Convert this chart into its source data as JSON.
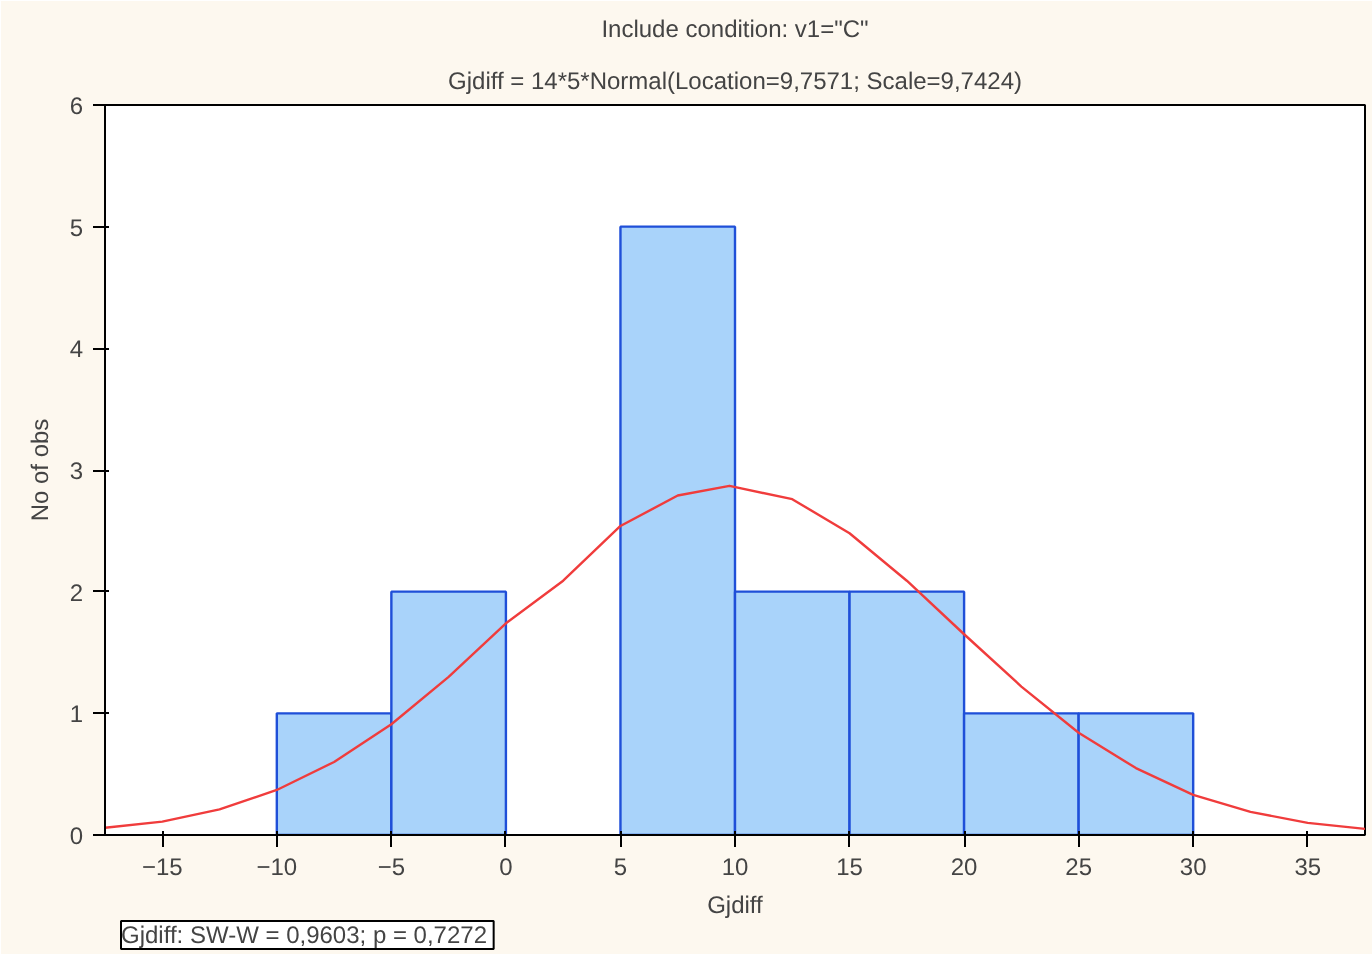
{
  "chart_data": {
    "type": "histogram",
    "title": "Include condition: v1=\"C\"",
    "subtitle": "Gjdiff = 14*5*Normal(Location=9,7571; Scale=9,7424)",
    "xlabel": "Gjdiff",
    "ylabel": "No of obs",
    "bins": [
      -10,
      -5,
      0,
      5,
      10,
      15,
      20,
      25,
      30
    ],
    "values": [
      1,
      2,
      0,
      5,
      2,
      2,
      1,
      1
    ],
    "color": "#a9d3fa",
    "series": [
      {
        "type": "line",
        "color": "#f03c3c",
        "x": [
          -17.5,
          -15,
          -12.5,
          -10,
          -7.5,
          -5,
          -2.5,
          0,
          2.5,
          5,
          7.5,
          9.76,
          12.5,
          15,
          17.5,
          20,
          22.5,
          25,
          27.5,
          30,
          32.5,
          35,
          37.5
        ],
        "values": [
          0.06,
          0.11,
          0.21,
          0.37,
          0.6,
          0.91,
          1.3,
          1.74,
          2.09,
          2.54,
          2.79,
          2.87,
          2.76,
          2.48,
          2.09,
          1.65,
          1.22,
          0.84,
          0.55,
          0.33,
          0.19,
          0.1,
          0.05
        ]
      }
    ],
    "xlim": [
      -17.5,
      37.5
    ],
    "ylim": [
      0,
      6
    ],
    "xticks": [
      -15,
      -10,
      -5,
      0,
      5,
      10,
      15,
      20,
      25,
      30,
      35
    ],
    "yticks": [
      0,
      1,
      2,
      3,
      4,
      5,
      6
    ],
    "grid": false,
    "annotations": [
      "Gjdiff:  SW-W = 0,9603; p = 0,7272"
    ]
  }
}
